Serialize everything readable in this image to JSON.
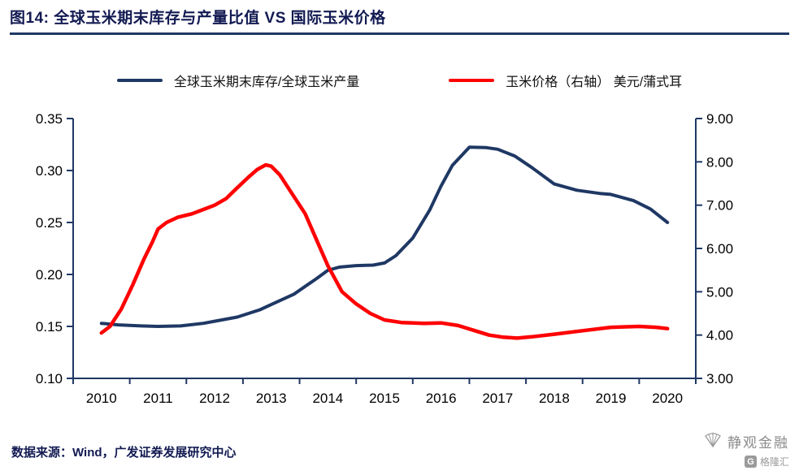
{
  "header": {
    "title": "图14:  全球玉米期末库存与产量比值 VS 国际玉米价格"
  },
  "legend": {
    "items": [
      {
        "label": "全球玉米期末库存/全球玉米产量",
        "color": "#1F3864"
      },
      {
        "label": "玉米价格（右轴） 美元/蒲式耳",
        "color": "#FF0000"
      }
    ]
  },
  "chart_data": {
    "type": "line",
    "title": "全球玉米期末库存与产量比值 VS 国际玉米价格",
    "x_domain": [
      2009.5,
      2020.5
    ],
    "x_ticks": [
      2010,
      2011,
      2012,
      2013,
      2014,
      2015,
      2016,
      2017,
      2018,
      2019,
      2020
    ],
    "left_axis": {
      "label": "全球玉米期末库存/全球玉米产量",
      "min": 0.1,
      "max": 0.35,
      "ticks": [
        0.35,
        0.3,
        0.25,
        0.2,
        0.15,
        0.1
      ]
    },
    "right_axis": {
      "label": "玉米价格 美元/蒲式耳",
      "min": 3.0,
      "max": 9.0,
      "ticks": [
        9.0,
        8.0,
        7.0,
        6.0,
        5.0,
        4.0,
        3.0
      ]
    },
    "grid": false,
    "legend_position": "top",
    "colors": {
      "axis": "#1F3864",
      "tick_text": "#000000",
      "stocks_ratio": "#1F3864",
      "corn_price": "#FF0000"
    },
    "series": [
      {
        "name": "全球玉米期末库存/全球玉米产量",
        "axis": "left",
        "color_key": "stocks_ratio",
        "points": [
          [
            2010.0,
            0.153
          ],
          [
            2010.3,
            0.1515
          ],
          [
            2010.7,
            0.1505
          ],
          [
            2011.0,
            0.15
          ],
          [
            2011.4,
            0.1505
          ],
          [
            2011.8,
            0.153
          ],
          [
            2012.0,
            0.155
          ],
          [
            2012.4,
            0.159
          ],
          [
            2012.8,
            0.166
          ],
          [
            2013.0,
            0.171
          ],
          [
            2013.4,
            0.181
          ],
          [
            2013.8,
            0.196
          ],
          [
            2014.0,
            0.204
          ],
          [
            2014.2,
            0.207
          ],
          [
            2014.5,
            0.2085
          ],
          [
            2014.8,
            0.209
          ],
          [
            2015.0,
            0.211
          ],
          [
            2015.2,
            0.218
          ],
          [
            2015.5,
            0.235
          ],
          [
            2015.8,
            0.262
          ],
          [
            2016.0,
            0.285
          ],
          [
            2016.2,
            0.305
          ],
          [
            2016.5,
            0.3225
          ],
          [
            2016.8,
            0.322
          ],
          [
            2017.0,
            0.3205
          ],
          [
            2017.3,
            0.314
          ],
          [
            2017.6,
            0.303
          ],
          [
            2018.0,
            0.287
          ],
          [
            2018.4,
            0.281
          ],
          [
            2018.8,
            0.278
          ],
          [
            2019.0,
            0.277
          ],
          [
            2019.4,
            0.271
          ],
          [
            2019.7,
            0.263
          ],
          [
            2020.0,
            0.25
          ]
        ]
      },
      {
        "name": "玉米价格（右轴） 美元/蒲式耳",
        "axis": "right",
        "color_key": "corn_price",
        "points": [
          [
            2010.0,
            4.05
          ],
          [
            2010.15,
            4.2
          ],
          [
            2010.35,
            4.6
          ],
          [
            2010.55,
            5.15
          ],
          [
            2010.75,
            5.75
          ],
          [
            2010.9,
            6.15
          ],
          [
            2011.0,
            6.45
          ],
          [
            2011.15,
            6.6
          ],
          [
            2011.35,
            6.72
          ],
          [
            2011.6,
            6.8
          ],
          [
            2011.8,
            6.9
          ],
          [
            2012.0,
            7.0
          ],
          [
            2012.2,
            7.15
          ],
          [
            2012.4,
            7.4
          ],
          [
            2012.6,
            7.65
          ],
          [
            2012.75,
            7.82
          ],
          [
            2012.9,
            7.93
          ],
          [
            2013.0,
            7.9
          ],
          [
            2013.15,
            7.7
          ],
          [
            2013.35,
            7.3
          ],
          [
            2013.6,
            6.8
          ],
          [
            2013.8,
            6.2
          ],
          [
            2014.0,
            5.6
          ],
          [
            2014.25,
            5.0
          ],
          [
            2014.5,
            4.72
          ],
          [
            2014.75,
            4.5
          ],
          [
            2015.0,
            4.35
          ],
          [
            2015.3,
            4.29
          ],
          [
            2015.7,
            4.27
          ],
          [
            2016.0,
            4.28
          ],
          [
            2016.3,
            4.22
          ],
          [
            2016.6,
            4.1
          ],
          [
            2016.85,
            4.0
          ],
          [
            2017.1,
            3.95
          ],
          [
            2017.35,
            3.93
          ],
          [
            2017.6,
            3.96
          ],
          [
            2018.0,
            4.02
          ],
          [
            2018.5,
            4.1
          ],
          [
            2019.0,
            4.18
          ],
          [
            2019.5,
            4.2
          ],
          [
            2019.8,
            4.18
          ],
          [
            2020.0,
            4.15
          ]
        ]
      }
    ]
  },
  "footer": {
    "source": "数据来源：Wind，广发证券发展研究中心"
  },
  "watermark": {
    "brand": "静观金融",
    "platform": "格隆汇",
    "platform_initial": "G"
  }
}
